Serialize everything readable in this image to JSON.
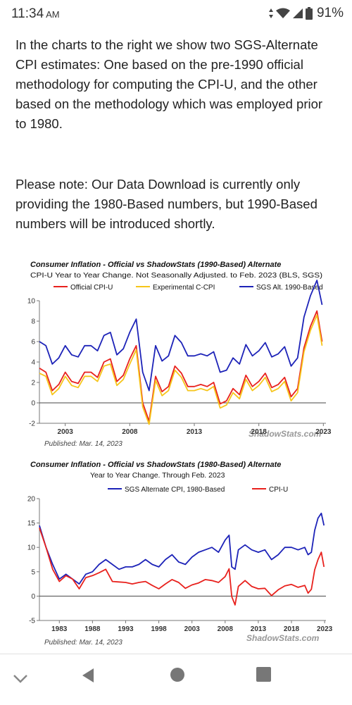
{
  "status_bar": {
    "time": "11:34",
    "ampm": "AM",
    "battery": "91%"
  },
  "article": {
    "paragraph1": "In the charts to the right we show two SGS-Alternate CPI estimates: One based on the pre-1990 official methodology for computing the CPI-U, and the other based on the methodology which was employed prior to 1980.",
    "paragraph2": "Please note:  Our Data Download is currently only providing the 1980-Based numbers, but 1990-Based numbers will be introduced shortly."
  },
  "colors": {
    "cpi_u": "#e8211d",
    "c_cpi": "#f6c51a",
    "sgs": "#1d23b8"
  },
  "chart_data": [
    {
      "type": "line",
      "title": "Consumer Inflation - Official vs ShadowStats (1990-Based) Alternate",
      "subtitle": "CPI-U Year to Year Change. Not Seasonally Adjusted. to Feb. 2023  (BLS, SGS)",
      "published": "Published: Mar. 14, 2023",
      "watermark": "ShadowStats.com",
      "ylim": [
        -2,
        10
      ],
      "xlim": [
        2001,
        2023.2
      ],
      "yticks": [
        "10",
        "8",
        "6",
        "4",
        "2",
        "0",
        "-2"
      ],
      "xticks": [
        "2003",
        "2008",
        "2013",
        "2018",
        "2023"
      ],
      "legend_position": "top",
      "series": [
        {
          "name": "Official CPI-U",
          "color": "#e8211d",
          "x": [
            2001.0,
            2001.5,
            2002.0,
            2002.5,
            2003.0,
            2003.5,
            2004.0,
            2004.5,
            2005.0,
            2005.5,
            2006.0,
            2006.5,
            2007.0,
            2007.5,
            2008.0,
            2008.5,
            2009.0,
            2009.5,
            2010.0,
            2010.5,
            2011.0,
            2011.5,
            2012.0,
            2012.5,
            2013.0,
            2013.5,
            2014.0,
            2014.5,
            2015.0,
            2015.5,
            2016.0,
            2016.5,
            2017.0,
            2017.5,
            2018.0,
            2018.5,
            2019.0,
            2019.5,
            2020.0,
            2020.5,
            2021.0,
            2021.5,
            2022.0,
            2022.5,
            2022.9
          ],
          "y": [
            3.4,
            3.0,
            1.2,
            1.8,
            3.0,
            2.1,
            1.9,
            3.0,
            3.0,
            2.5,
            4.0,
            4.3,
            2.1,
            2.7,
            4.3,
            5.6,
            0.0,
            -1.8,
            2.6,
            1.1,
            1.6,
            3.6,
            2.9,
            1.6,
            1.6,
            1.8,
            1.6,
            2.0,
            -0.1,
            0.2,
            1.4,
            0.8,
            2.7,
            1.6,
            2.1,
            2.9,
            1.5,
            1.8,
            2.5,
            0.6,
            1.4,
            5.4,
            7.5,
            9.0,
            6.0
          ]
        },
        {
          "name": "Experimental C-CPI",
          "color": "#f6c51a",
          "x": [
            2001.0,
            2001.5,
            2002.0,
            2002.5,
            2003.0,
            2003.5,
            2004.0,
            2004.5,
            2005.0,
            2005.5,
            2006.0,
            2006.5,
            2007.0,
            2007.5,
            2008.0,
            2008.5,
            2009.0,
            2009.5,
            2010.0,
            2010.5,
            2011.0,
            2011.5,
            2012.0,
            2012.5,
            2013.0,
            2013.5,
            2014.0,
            2014.5,
            2015.0,
            2015.5,
            2016.0,
            2016.5,
            2017.0,
            2017.5,
            2018.0,
            2018.5,
            2019.0,
            2019.5,
            2020.0,
            2020.5,
            2021.0,
            2021.5,
            2022.0,
            2022.5,
            2022.9
          ],
          "y": [
            2.9,
            2.6,
            0.8,
            1.4,
            2.6,
            1.7,
            1.5,
            2.6,
            2.6,
            2.1,
            3.6,
            3.8,
            1.7,
            2.3,
            3.8,
            5.2,
            -0.4,
            -2.1,
            2.2,
            0.7,
            1.2,
            3.2,
            2.5,
            1.2,
            1.2,
            1.4,
            1.2,
            1.6,
            -0.5,
            -0.2,
            1.0,
            0.4,
            2.3,
            1.2,
            1.7,
            2.5,
            1.1,
            1.4,
            2.1,
            0.2,
            1.0,
            5.0,
            7.1,
            8.6,
            5.6
          ]
        },
        {
          "name": "SGS  Alt. 1990-Based",
          "color": "#1d23b8",
          "x": [
            2001.0,
            2001.5,
            2002.0,
            2002.5,
            2003.0,
            2003.5,
            2004.0,
            2004.5,
            2005.0,
            2005.5,
            2006.0,
            2006.5,
            2007.0,
            2007.5,
            2008.0,
            2008.5,
            2009.0,
            2009.5,
            2010.0,
            2010.5,
            2011.0,
            2011.5,
            2012.0,
            2012.5,
            2013.0,
            2013.5,
            2014.0,
            2014.5,
            2015.0,
            2015.5,
            2016.0,
            2016.5,
            2017.0,
            2017.5,
            2018.0,
            2018.5,
            2019.0,
            2019.5,
            2020.0,
            2020.5,
            2021.0,
            2021.5,
            2022.0,
            2022.5,
            2022.9
          ],
          "y": [
            6.0,
            5.6,
            3.8,
            4.4,
            5.6,
            4.7,
            4.5,
            5.6,
            5.6,
            5.1,
            6.6,
            6.9,
            4.7,
            5.3,
            6.9,
            8.2,
            3.0,
            1.2,
            5.6,
            4.1,
            4.6,
            6.6,
            5.9,
            4.6,
            4.6,
            4.8,
            4.6,
            5.0,
            3.0,
            3.2,
            4.4,
            3.8,
            5.7,
            4.6,
            5.1,
            5.9,
            4.5,
            4.8,
            5.5,
            3.6,
            4.4,
            8.4,
            10.5,
            12.0,
            9.6
          ]
        }
      ]
    },
    {
      "type": "line",
      "title": "Consumer Inflation - Official vs ShadowStats (1980-Based) Alternate",
      "subtitle": "Year to Year Change. Through Feb. 2023",
      "published": "Published: Mar. 14, 2023",
      "watermark": "ShadowStats.com",
      "ylim": [
        -5,
        20
      ],
      "xlim": [
        1980,
        2023.2
      ],
      "yticks": [
        "20",
        "15",
        "10",
        "5",
        "0",
        "-5"
      ],
      "xticks": [
        "1983",
        "1988",
        "1993",
        "1998",
        "2003",
        "2008",
        "2013",
        "2018",
        "2023"
      ],
      "legend_position": "top",
      "series": [
        {
          "name": "SGS Alternate CPI, 1980-Based",
          "color": "#1d23b8",
          "x": [
            1980.0,
            1981.0,
            1982.0,
            1983.0,
            1984.0,
            1985.0,
            1986.0,
            1987.0,
            1988.0,
            1989.0,
            1990.0,
            1991.0,
            1992.0,
            1993.0,
            1994.0,
            1995.0,
            1996.0,
            1997.0,
            1998.0,
            1999.0,
            2000.0,
            2001.0,
            2002.0,
            2003.0,
            2004.0,
            2005.0,
            2006.0,
            2007.0,
            2008.0,
            2008.6,
            2009.0,
            2009.5,
            2010.0,
            2011.0,
            2012.0,
            2013.0,
            2014.0,
            2015.0,
            2016.0,
            2017.0,
            2018.0,
            2019.0,
            2020.0,
            2020.5,
            2021.0,
            2021.5,
            2022.0,
            2022.5,
            2022.9
          ],
          "y": [
            14.5,
            10.0,
            6.5,
            3.5,
            4.5,
            3.5,
            2.5,
            4.5,
            5.0,
            6.5,
            7.5,
            6.5,
            5.5,
            6.0,
            6.0,
            6.5,
            7.5,
            6.5,
            6.0,
            7.5,
            8.5,
            7.0,
            6.5,
            8.0,
            9.0,
            9.5,
            10.0,
            9.0,
            11.5,
            12.5,
            6.0,
            5.5,
            9.5,
            10.5,
            9.5,
            9.0,
            9.5,
            7.5,
            8.5,
            10.0,
            10.0,
            9.5,
            10.0,
            8.5,
            9.0,
            13.5,
            16.0,
            17.0,
            14.5
          ]
        },
        {
          "name": "CPI-U",
          "color": "#e8211d",
          "x": [
            1980.0,
            1981.0,
            1982.0,
            1983.0,
            1984.0,
            1985.0,
            1986.0,
            1987.0,
            1988.0,
            1989.0,
            1990.0,
            1991.0,
            1992.0,
            1993.0,
            1994.0,
            1995.0,
            1996.0,
            1997.0,
            1998.0,
            1999.0,
            2000.0,
            2001.0,
            2002.0,
            2003.0,
            2004.0,
            2005.0,
            2006.0,
            2007.0,
            2008.0,
            2008.6,
            2009.0,
            2009.5,
            2010.0,
            2011.0,
            2012.0,
            2013.0,
            2014.0,
            2015.0,
            2016.0,
            2017.0,
            2018.0,
            2019.0,
            2020.0,
            2020.5,
            2021.0,
            2021.5,
            2022.0,
            2022.5,
            2022.9
          ],
          "y": [
            14.0,
            10.0,
            5.5,
            3.0,
            4.2,
            3.5,
            1.5,
            3.8,
            4.2,
            4.8,
            5.5,
            3.0,
            2.9,
            2.8,
            2.5,
            2.8,
            3.0,
            2.2,
            1.5,
            2.5,
            3.4,
            2.8,
            1.6,
            2.3,
            2.7,
            3.4,
            3.2,
            2.8,
            4.0,
            5.6,
            -0.1,
            -1.8,
            2.0,
            3.2,
            2.0,
            1.5,
            1.6,
            0.1,
            1.3,
            2.1,
            2.4,
            1.8,
            2.2,
            0.6,
            1.4,
            5.4,
            7.5,
            9.0,
            6.0
          ]
        }
      ]
    }
  ]
}
